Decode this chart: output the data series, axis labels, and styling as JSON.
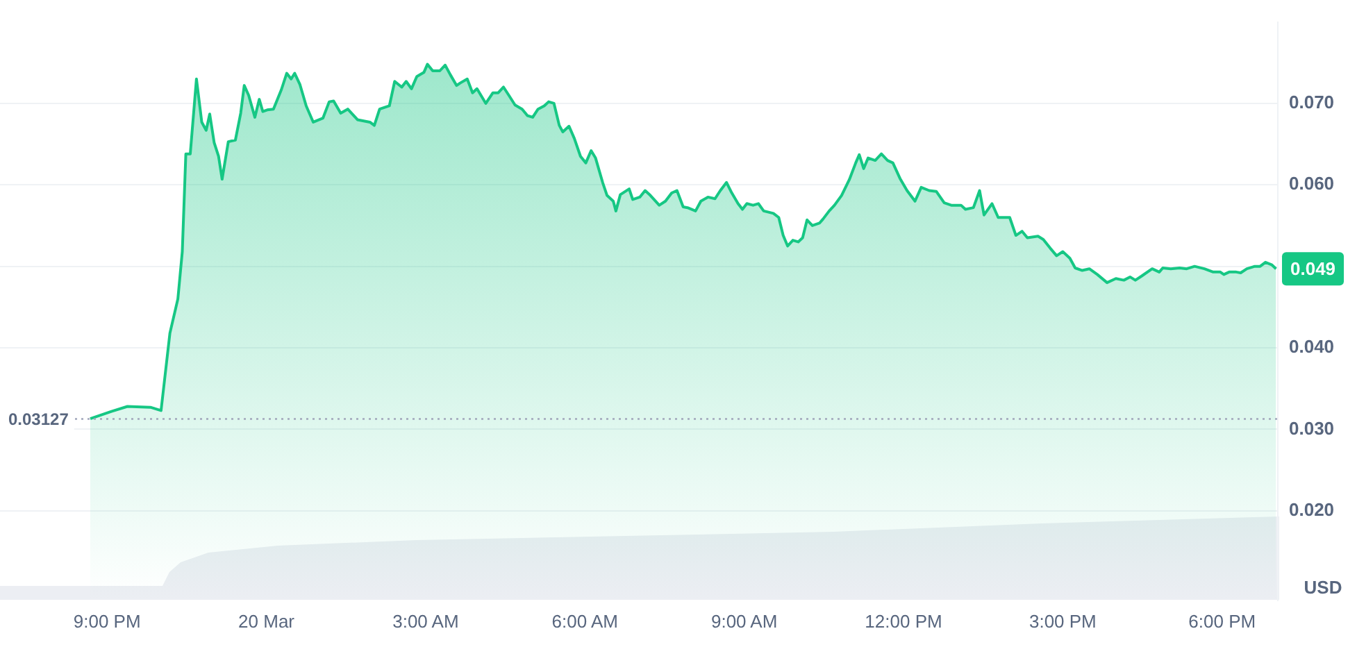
{
  "chart_data": {
    "type": "area",
    "ylabel": "USD",
    "xlim": [
      "--03-19T18:59",
      "--03-20T19:03"
    ],
    "xticks": [
      {
        "value": "--03-19T21:00",
        "label": "9:00 PM"
      },
      {
        "value": "--03-20T00:00",
        "label": "20 Mar"
      },
      {
        "value": "--03-20T03:00",
        "label": "3:00 AM"
      },
      {
        "value": "--03-20T06:00",
        "label": "6:00 AM"
      },
      {
        "value": "--03-20T09:00",
        "label": "9:00 AM"
      },
      {
        "value": "--03-20T12:00",
        "label": "12:00 PM"
      },
      {
        "value": "--03-20T15:00",
        "label": "3:00 PM"
      },
      {
        "value": "--03-20T18:00",
        "label": "6:00 PM"
      }
    ],
    "ylim": [
      0.009,
      0.08
    ],
    "yticks": [
      {
        "value": 0.02,
        "label": "0.020"
      },
      {
        "value": 0.03,
        "label": "0.030"
      },
      {
        "value": 0.04,
        "label": "0.040"
      },
      {
        "value": 0.05,
        "label": null
      },
      {
        "value": 0.06,
        "label": "0.060"
      },
      {
        "value": 0.07,
        "label": "0.070"
      }
    ],
    "grid": "y",
    "legend": false,
    "series": [
      {
        "color": "#16c784",
        "x": [
          "--03-19T20:41",
          "--03-19T21:05",
          "--03-19T21:23",
          "--03-19T21:49",
          "--03-19T22:01",
          "--03-19T22:11",
          "--03-19T22:20",
          "--03-19T22:25",
          "--03-19T22:29",
          "--03-19T22:34",
          "--03-19T22:41",
          "--03-19T22:47",
          "--03-19T22:52",
          "--03-19T22:56",
          "--03-19T23:01",
          "--03-19T23:06",
          "--03-19T23:10",
          "--03-19T23:17",
          "--03-19T23:25",
          "--03-19T23:31",
          "--03-19T23:35",
          "--03-19T23:40",
          "--03-19T23:47",
          "--03-19T23:52",
          "--03-19T23:56",
          "--03-20T00:01",
          "--03-20T00:08",
          "--03-20T00:17",
          "--03-20T00:23",
          "--03-20T00:28",
          "--03-20T00:32",
          "--03-20T00:38",
          "--03-20T00:45",
          "--03-20T00:53",
          "--03-20T01:04",
          "--03-20T01:11",
          "--03-20T01:16",
          "--03-20T01:24",
          "--03-20T01:32",
          "--03-20T01:43",
          "--03-20T01:57",
          "--03-20T02:02",
          "--03-20T02:08",
          "--03-20T02:19",
          "--03-20T02:25",
          "--03-20T02:33",
          "--03-20T02:38",
          "--03-20T02:44",
          "--03-20T02:50",
          "--03-20T02:58",
          "--03-20T03:02",
          "--03-20T03:08",
          "--03-20T03:16",
          "--03-20T03:22",
          "--03-20T03:28",
          "--03-20T03:35",
          "--03-20T03:39",
          "--03-20T03:47",
          "--03-20T03:53",
          "--03-20T03:58",
          "--03-20T04:08",
          "--03-20T04:16",
          "--03-20T04:22",
          "--03-20T04:28",
          "--03-20T04:34",
          "--03-20T04:41",
          "--03-20T04:49",
          "--03-20T04:55",
          "--03-20T05:01",
          "--03-20T05:07",
          "--03-20T05:14",
          "--03-20T05:19",
          "--03-20T05:25",
          "--03-20T05:31",
          "--03-20T05:35",
          "--03-20T05:42",
          "--03-20T05:48",
          "--03-20T05:55",
          "--03-20T06:01",
          "--03-20T06:07",
          "--03-20T06:12",
          "--03-20T06:20",
          "--03-20T06:25",
          "--03-20T06:32",
          "--03-20T06:35",
          "--03-20T06:40",
          "--03-20T06:50",
          "--03-20T06:54",
          "--03-20T07:02",
          "--03-20T07:08",
          "--03-20T07:14",
          "--03-20T07:24",
          "--03-20T07:31",
          "--03-20T07:38",
          "--03-20T07:44",
          "--03-20T07:51",
          "--03-20T07:56",
          "--03-20T08:05",
          "--03-20T08:11",
          "--03-20T08:19",
          "--03-20T08:27",
          "--03-20T08:33",
          "--03-20T08:40",
          "--03-20T08:46",
          "--03-20T08:53",
          "--03-20T08:58",
          "--03-20T09:03",
          "--03-20T09:10",
          "--03-20T09:16",
          "--03-20T09:22",
          "--03-20T09:33",
          "--03-20T09:39",
          "--03-20T09:44",
          "--03-20T09:49",
          "--03-20T09:55",
          "--03-20T10:01",
          "--03-20T10:06",
          "--03-20T10:11",
          "--03-20T10:17",
          "--03-20T10:25",
          "--03-20T10:29",
          "--03-20T10:36",
          "--03-20T10:42",
          "--03-20T10:50",
          "--03-20T10:59",
          "--03-20T11:06",
          "--03-20T11:10",
          "--03-20T11:15",
          "--03-20T11:20",
          "--03-20T11:28",
          "--03-20T11:35",
          "--03-20T11:42",
          "--03-20T11:48",
          "--03-20T11:56",
          "--03-20T12:04",
          "--03-20T12:13",
          "--03-20T12:20",
          "--03-20T12:29",
          "--03-20T12:37",
          "--03-20T12:46",
          "--03-20T12:54",
          "--03-20T13:05",
          "--03-20T13:10",
          "--03-20T13:19",
          "--03-20T13:26",
          "--03-20T13:31",
          "--03-20T13:40",
          "--03-20T13:47",
          "--03-20T14:00",
          "--03-20T14:07",
          "--03-20T14:14",
          "--03-20T14:20",
          "--03-20T14:32",
          "--03-20T14:38",
          "--03-20T14:46",
          "--03-20T14:53",
          "--03-20T15:00",
          "--03-20T15:08",
          "--03-20T15:14",
          "--03-20T15:22",
          "--03-20T15:30",
          "--03-20T15:39",
          "--03-20T15:50",
          "--03-20T16:00",
          "--03-20T16:09",
          "--03-20T16:16",
          "--03-20T16:22",
          "--03-20T16:29",
          "--03-20T16:41",
          "--03-20T16:49",
          "--03-20T16:53",
          "--03-20T17:02",
          "--03-20T17:12",
          "--03-20T17:20",
          "--03-20T17:29",
          "--03-20T17:40",
          "--03-20T17:50",
          "--03-20T17:58",
          "--03-20T18:02",
          "--03-20T18:08",
          "--03-20T18:16",
          "--03-20T18:21",
          "--03-20T18:28",
          "--03-20T18:37",
          "--03-20T18:43",
          "--03-20T18:49",
          "--03-20T18:56",
          "--03-20T19:01"
        ],
        "values": [
          0.0313,
          0.0322,
          0.0328,
          0.0327,
          0.0323,
          0.0418,
          0.046,
          0.0518,
          0.0638,
          0.0638,
          0.073,
          0.0677,
          0.0667,
          0.0687,
          0.0652,
          0.0635,
          0.0607,
          0.0653,
          0.0655,
          0.0688,
          0.0722,
          0.071,
          0.0683,
          0.0705,
          0.069,
          0.0692,
          0.0693,
          0.0717,
          0.0737,
          0.073,
          0.0737,
          0.0723,
          0.0697,
          0.0677,
          0.0682,
          0.0702,
          0.0703,
          0.0688,
          0.0693,
          0.068,
          0.0677,
          0.0673,
          0.0693,
          0.0697,
          0.0727,
          0.072,
          0.0727,
          0.0718,
          0.0733,
          0.0738,
          0.0748,
          0.074,
          0.074,
          0.0747,
          0.0735,
          0.0722,
          0.0725,
          0.073,
          0.0713,
          0.0718,
          0.07,
          0.0713,
          0.0713,
          0.072,
          0.071,
          0.0698,
          0.0693,
          0.0685,
          0.0683,
          0.0693,
          0.0697,
          0.0702,
          0.07,
          0.0673,
          0.0665,
          0.0672,
          0.0657,
          0.0635,
          0.0627,
          0.0642,
          0.0633,
          0.0603,
          0.0587,
          0.058,
          0.0568,
          0.0588,
          0.0595,
          0.0582,
          0.0585,
          0.0593,
          0.0587,
          0.0575,
          0.058,
          0.059,
          0.0593,
          0.0573,
          0.0572,
          0.0568,
          0.058,
          0.0585,
          0.0583,
          0.0593,
          0.0603,
          0.059,
          0.0577,
          0.057,
          0.0577,
          0.0575,
          0.0577,
          0.0568,
          0.0565,
          0.056,
          0.0538,
          0.0525,
          0.0532,
          0.053,
          0.0535,
          0.0557,
          0.055,
          0.0553,
          0.0558,
          0.0568,
          0.0575,
          0.0587,
          0.0607,
          0.0627,
          0.0637,
          0.062,
          0.0633,
          0.063,
          0.0638,
          0.063,
          0.0627,
          0.0608,
          0.0593,
          0.058,
          0.0597,
          0.0593,
          0.0592,
          0.0578,
          0.0575,
          0.0575,
          0.057,
          0.0572,
          0.0593,
          0.0563,
          0.0577,
          0.056,
          0.056,
          0.0538,
          0.0543,
          0.0535,
          0.0537,
          0.0533,
          0.0522,
          0.0513,
          0.0518,
          0.051,
          0.0498,
          0.0495,
          0.0497,
          0.049,
          0.048,
          0.0485,
          0.0483,
          0.0487,
          0.0483,
          0.0488,
          0.0497,
          0.0493,
          0.0498,
          0.0497,
          0.0498,
          0.0497,
          0.05,
          0.0497,
          0.0493,
          0.0493,
          0.049,
          0.0493,
          0.0493,
          0.0492,
          0.0497,
          0.05,
          0.05,
          0.0505,
          0.0502,
          0.0497
        ]
      }
    ],
    "ref_lines": [
      {
        "axis": "y",
        "value": 0.03127,
        "label": "0.03127",
        "color": "#a1a7bb",
        "line_style": "dotted"
      }
    ],
    "annotations": [
      "0.049"
    ]
  }
}
